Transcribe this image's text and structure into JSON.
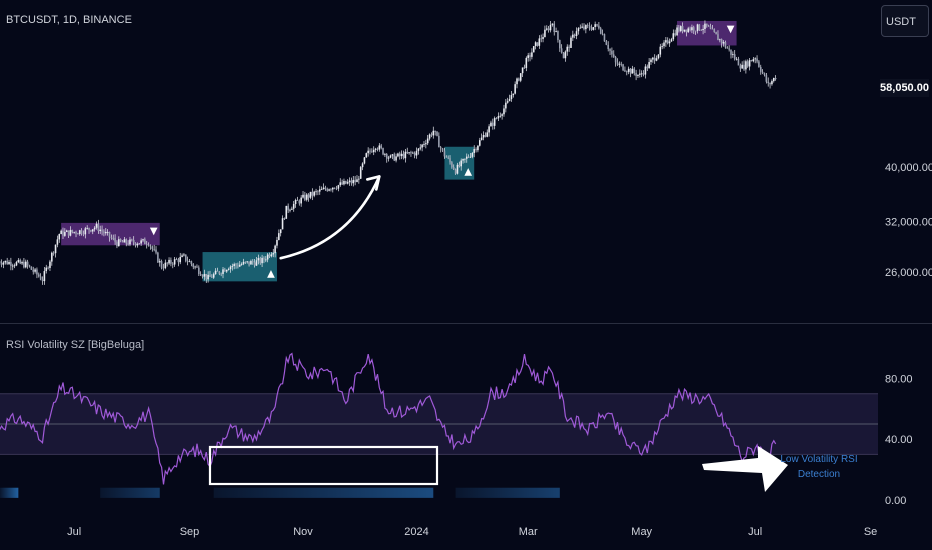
{
  "header": {
    "symbol": "BTCUSDT, 1D, BINANCE",
    "currency_button": "USDT",
    "last_price": "58,050.00"
  },
  "indicator": {
    "title": "RSI Volatility SZ [BigBeluga]",
    "annotation": "Low Volatility RSI Detection"
  },
  "colors": {
    "background": "#050818",
    "candle": "#e8eaf0",
    "rsi_line": "#a05ad8",
    "bullish_zone": "#1f6f80",
    "bearish_zone": "#5a2e7e",
    "rsi_band": "#1c1a38",
    "low_vol_bar": "#2a78c4"
  },
  "chart_data": [
    {
      "type": "candlestick",
      "title": "BTCUSDT, 1D, BINANCE",
      "x_axis": {
        "type": "date",
        "range": [
          "2023-05-20",
          "2024-09-05"
        ]
      },
      "y_axis": {
        "scale": "log",
        "range": [
          21500,
          77000
        ],
        "ticks": [
          26000,
          32000,
          40000,
          58050
        ]
      },
      "x_ticks": [
        {
          "label": "Jul",
          "date": "2023-07-01"
        },
        {
          "label": "Sep",
          "date": "2023-09-01"
        },
        {
          "label": "Nov",
          "date": "2023-11-01"
        },
        {
          "label": "2024",
          "date": "2024-01-01"
        },
        {
          "label": "Mar",
          "date": "2024-03-01"
        },
        {
          "label": "May",
          "date": "2024-05-01"
        },
        {
          "label": "Jul",
          "date": "2024-07-01"
        },
        {
          "label": "Se",
          "date": "2024-09-01"
        }
      ],
      "price_path": [
        [
          "2023-05-20",
          27200
        ],
        [
          "2023-06-05",
          26800
        ],
        [
          "2023-06-14",
          25200
        ],
        [
          "2023-06-20",
          28500
        ],
        [
          "2023-06-23",
          30400
        ],
        [
          "2023-07-06",
          30800
        ],
        [
          "2023-07-13",
          31300
        ],
        [
          "2023-07-24",
          29300
        ],
        [
          "2023-08-10",
          29400
        ],
        [
          "2023-08-17",
          26600
        ],
        [
          "2023-08-29",
          27600
        ],
        [
          "2023-09-11",
          25300
        ],
        [
          "2023-09-22",
          26600
        ],
        [
          "2023-10-10",
          27200
        ],
        [
          "2023-10-16",
          28500
        ],
        [
          "2023-10-23",
          33600
        ],
        [
          "2023-11-01",
          35200
        ],
        [
          "2023-11-15",
          36800
        ],
        [
          "2023-11-30",
          37800
        ],
        [
          "2023-12-05",
          42000
        ],
        [
          "2023-12-10",
          43800
        ],
        [
          "2023-12-18",
          41500
        ],
        [
          "2024-01-01",
          42500
        ],
        [
          "2024-01-10",
          46500
        ],
        [
          "2024-01-15",
          42500
        ],
        [
          "2024-01-22",
          39500
        ],
        [
          "2024-01-31",
          42600
        ],
        [
          "2024-02-10",
          47500
        ],
        [
          "2024-02-19",
          52000
        ],
        [
          "2024-02-28",
          61000
        ],
        [
          "2024-03-05",
          66000
        ],
        [
          "2024-03-14",
          72500
        ],
        [
          "2024-03-20",
          63000
        ],
        [
          "2024-03-27",
          70500
        ],
        [
          "2024-04-08",
          71500
        ],
        [
          "2024-04-17",
          61300
        ],
        [
          "2024-04-30",
          58300
        ],
        [
          "2024-05-20",
          70500
        ],
        [
          "2024-06-05",
          71200
        ],
        [
          "2024-06-14",
          66500
        ],
        [
          "2024-06-24",
          60300
        ],
        [
          "2024-07-01",
          63000
        ],
        [
          "2024-07-08",
          56000
        ],
        [
          "2024-07-12",
          58050
        ]
      ],
      "zones": [
        {
          "kind": "bearish",
          "start": "2023-06-24",
          "end": "2023-08-16",
          "high": 31800,
          "low": 29000,
          "marker": "▼"
        },
        {
          "kind": "bullish",
          "start": "2023-09-08",
          "end": "2023-10-18",
          "high": 28200,
          "low": 25000,
          "marker": "▲"
        },
        {
          "kind": "bullish",
          "start": "2024-01-16",
          "end": "2024-02-01",
          "high": 43500,
          "low": 38000,
          "marker": "▲"
        },
        {
          "kind": "bearish",
          "start": "2024-05-20",
          "end": "2024-06-21",
          "high": 73000,
          "low": 66000,
          "marker": "▼"
        }
      ],
      "annotations": [
        {
          "type": "arrow",
          "from": [
            "2023-10-20",
            27500
          ],
          "to": [
            "2023-12-12",
            38500
          ]
        }
      ]
    },
    {
      "type": "line",
      "title": "RSI Volatility SZ [BigBeluga]",
      "y_axis": {
        "range": [
          -8,
          112
        ],
        "ticks": [
          0,
          40,
          80
        ]
      },
      "band": [
        30,
        70
      ],
      "midline": 50,
      "rsi": [
        [
          "2023-05-20",
          48
        ],
        [
          "2023-06-01",
          54
        ],
        [
          "2023-06-14",
          42
        ],
        [
          "2023-06-24",
          74
        ],
        [
          "2023-07-06",
          66
        ],
        [
          "2023-07-16",
          58
        ],
        [
          "2023-08-01",
          50
        ],
        [
          "2023-08-10",
          57
        ],
        [
          "2023-08-18",
          14
        ],
        [
          "2023-08-26",
          28
        ],
        [
          "2023-09-05",
          33
        ],
        [
          "2023-09-12",
          26
        ],
        [
          "2023-09-22",
          48
        ],
        [
          "2023-10-05",
          40
        ],
        [
          "2023-10-16",
          56
        ],
        [
          "2023-10-24",
          94
        ],
        [
          "2023-11-05",
          82
        ],
        [
          "2023-11-14",
          88
        ],
        [
          "2023-11-24",
          65
        ],
        [
          "2023-12-06",
          97
        ],
        [
          "2023-12-16",
          60
        ],
        [
          "2023-12-25",
          58
        ],
        [
          "2024-01-08",
          66
        ],
        [
          "2024-01-15",
          46
        ],
        [
          "2024-01-23",
          36
        ],
        [
          "2024-02-01",
          42
        ],
        [
          "2024-02-10",
          70
        ],
        [
          "2024-02-20",
          72
        ],
        [
          "2024-02-28",
          92
        ],
        [
          "2024-03-07",
          79
        ],
        [
          "2024-03-14",
          85
        ],
        [
          "2024-03-22",
          55
        ],
        [
          "2024-04-03",
          46
        ],
        [
          "2024-04-12",
          58
        ],
        [
          "2024-04-24",
          36
        ],
        [
          "2024-05-03",
          32
        ],
        [
          "2024-05-20",
          70
        ],
        [
          "2024-06-06",
          66
        ],
        [
          "2024-06-15",
          50
        ],
        [
          "2024-06-24",
          28
        ],
        [
          "2024-07-02",
          36
        ],
        [
          "2024-07-08",
          27
        ],
        [
          "2024-07-12",
          38
        ]
      ],
      "low_volatility_segments": [
        {
          "start": "2023-05-20",
          "end": "2023-06-01",
          "intensity": 0.8
        },
        {
          "start": "2023-07-15",
          "end": "2023-08-16",
          "intensity": 0.45
        },
        {
          "start": "2023-09-14",
          "end": "2024-01-10",
          "intensity": 0.6
        },
        {
          "start": "2024-01-22",
          "end": "2024-03-18",
          "intensity": 0.5
        }
      ],
      "highlight": {
        "start": "2023-09-12",
        "end": "2024-01-12"
      },
      "annotations": [
        {
          "type": "arrow",
          "label": "Low Volatility RSI Detection"
        }
      ]
    }
  ]
}
